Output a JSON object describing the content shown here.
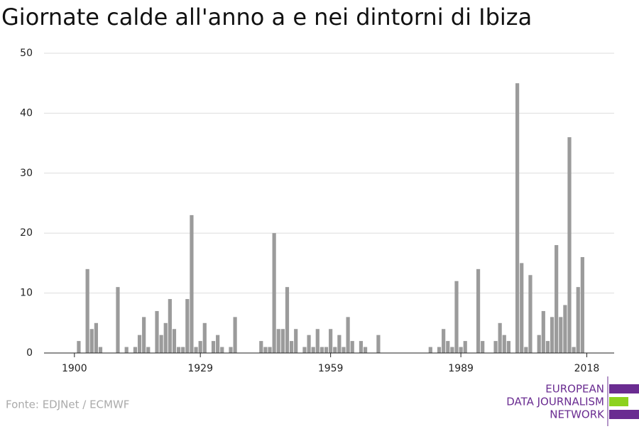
{
  "chart_data": {
    "type": "bar",
    "title": "Giornate calde all'anno a e nei dintorni di Ibiza",
    "source": "Fonte: EDJNet / ECMWF",
    "x": [
      1901,
      1903,
      1904,
      1905,
      1906,
      1910,
      1912,
      1914,
      1915,
      1916,
      1917,
      1919,
      1920,
      1921,
      1922,
      1923,
      1924,
      1925,
      1926,
      1927,
      1928,
      1929,
      1930,
      1932,
      1933,
      1934,
      1936,
      1937,
      1943,
      1944,
      1945,
      1946,
      1947,
      1948,
      1949,
      1950,
      1951,
      1953,
      1954,
      1955,
      1956,
      1957,
      1958,
      1959,
      1960,
      1961,
      1962,
      1963,
      1964,
      1966,
      1967,
      1970,
      1982,
      1984,
      1985,
      1986,
      1987,
      1988,
      1989,
      1990,
      1993,
      1994,
      1997,
      1998,
      1999,
      2000,
      2002,
      2003,
      2004,
      2005,
      2007,
      2008,
      2009,
      2010,
      2011,
      2012,
      2013,
      2014,
      2015,
      2016,
      2017
    ],
    "values": [
      2,
      14,
      4,
      5,
      1,
      11,
      1,
      1,
      3,
      6,
      1,
      7,
      3,
      5,
      9,
      4,
      1,
      1,
      9,
      23,
      1,
      2,
      5,
      2,
      3,
      1,
      1,
      6,
      2,
      1,
      1,
      20,
      4,
      4,
      11,
      2,
      4,
      1,
      3,
      1,
      4,
      1,
      1,
      4,
      1,
      3,
      1,
      6,
      2,
      2,
      1,
      3,
      1,
      1,
      4,
      2,
      1,
      12,
      1,
      2,
      14,
      2,
      2,
      5,
      3,
      2,
      45,
      15,
      1,
      13,
      3,
      7,
      2,
      6,
      18,
      6,
      8,
      36,
      1,
      11,
      16
    ],
    "color": "#9b9b9b",
    "xlim": [
      1893,
      2024.3
    ],
    "xticks": [
      1900,
      1929,
      1959,
      1989,
      2018
    ],
    "ylim": [
      0,
      50
    ],
    "yticks": [
      0,
      10,
      20,
      30,
      40,
      50
    ],
    "grid": true
  },
  "logo": {
    "lines": [
      "EUROPEAN",
      "DATA JOURNALISM",
      "NETWORK"
    ]
  }
}
